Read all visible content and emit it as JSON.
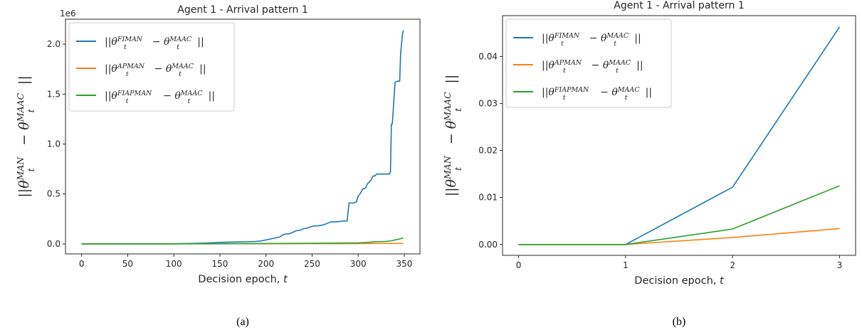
{
  "chart_data": [
    {
      "type": "line",
      "panel": "(a)",
      "title": "Agent 1 - Arrival pattern 1",
      "xlabel": "Decision epoch, t",
      "ylabel": "||θ_t^MAN − θ_t^MAAC||",
      "y_multiplier_label": "1e6",
      "xlim": [
        -17.5,
        367
      ],
      "ylim": [
        -0.1,
        2.25
      ],
      "xticks": [
        0,
        50,
        100,
        150,
        200,
        250,
        300,
        350
      ],
      "yticks": [
        0.0,
        0.5,
        1.0,
        1.5,
        2.0
      ],
      "ytick_labels": [
        "0.0",
        "0.5",
        "1.0",
        "1.5",
        "2.0"
      ],
      "legend_position": "upper-left",
      "series": [
        {
          "name": "||θ_t^FIMAN − θ_t^MAAC||",
          "color": "#1f77b4",
          "x": [
            0,
            100,
            120,
            140,
            150,
            160,
            170,
            180,
            190,
            195,
            200,
            205,
            210,
            215,
            218,
            222,
            225,
            230,
            232,
            238,
            240,
            245,
            248,
            252,
            255,
            262,
            265,
            270,
            275,
            285,
            288,
            290,
            295,
            298,
            300,
            302,
            305,
            308,
            310,
            312,
            314,
            316,
            318,
            320,
            325,
            330,
            334,
            335,
            336,
            337,
            340,
            343,
            344,
            345,
            346,
            348,
            349
          ],
          "y": [
            0.0,
            0.001,
            0.005,
            0.01,
            0.015,
            0.018,
            0.02,
            0.022,
            0.025,
            0.03,
            0.04,
            0.05,
            0.06,
            0.07,
            0.09,
            0.1,
            0.1,
            0.12,
            0.13,
            0.14,
            0.15,
            0.16,
            0.17,
            0.18,
            0.18,
            0.19,
            0.2,
            0.22,
            0.22,
            0.23,
            0.23,
            0.41,
            0.41,
            0.42,
            0.48,
            0.5,
            0.55,
            0.56,
            0.6,
            0.62,
            0.64,
            0.68,
            0.68,
            0.7,
            0.7,
            0.7,
            0.7,
            0.72,
            1.2,
            1.2,
            1.62,
            1.63,
            1.63,
            1.63,
            1.9,
            2.1,
            2.14
          ]
        },
        {
          "name": "||θ_t^APMAN − θ_t^MAAC||",
          "color": "#ff7f0e",
          "x": [
            0,
            100,
            200,
            250,
            300,
            349
          ],
          "y": [
            0.0,
            0.0005,
            0.002,
            0.003,
            0.004,
            0.005
          ]
        },
        {
          "name": "||θ_t^FIAPMAN − θ_t^MAAC||",
          "color": "#2ca02c",
          "x": [
            0,
            100,
            150,
            200,
            250,
            280,
            300,
            310,
            315,
            320,
            330,
            335,
            340,
            343,
            345,
            347,
            349
          ],
          "y": [
            0.0,
            0.0005,
            0.002,
            0.004,
            0.006,
            0.008,
            0.01,
            0.015,
            0.02,
            0.022,
            0.025,
            0.03,
            0.04,
            0.045,
            0.05,
            0.055,
            0.06
          ]
        }
      ]
    },
    {
      "type": "line",
      "panel": "(b)",
      "title": "Agent 1 - Arrival pattern 1",
      "xlabel": "Decision epoch, t",
      "ylabel": "||θ_t^MAN − θ_t^MAAC||",
      "xlim": [
        -0.15,
        3.15
      ],
      "ylim": [
        -0.0023,
        0.0487
      ],
      "xticks": [
        0,
        1,
        2,
        3
      ],
      "yticks": [
        0.0,
        0.01,
        0.02,
        0.03,
        0.04
      ],
      "ytick_labels": [
        "0.00",
        "0.01",
        "0.02",
        "0.03",
        "0.04"
      ],
      "legend_position": "upper-left",
      "series": [
        {
          "name": "||θ_t^FIMAN − θ_t^MAAC||",
          "color": "#1f77b4",
          "x": [
            0,
            1,
            2,
            3
          ],
          "y": [
            0.0,
            0.0,
            0.0122,
            0.0463
          ]
        },
        {
          "name": "||θ_t^APMAN − θ_t^MAAC||",
          "color": "#ff7f0e",
          "x": [
            0,
            1,
            2,
            3
          ],
          "y": [
            0.0,
            0.0,
            0.0015,
            0.0034
          ]
        },
        {
          "name": "||θ_t^FIAPMAN − θ_t^MAAC||",
          "color": "#2ca02c",
          "x": [
            0,
            1,
            2,
            3
          ],
          "y": [
            0.0,
            0.0,
            0.0033,
            0.0125
          ]
        }
      ]
    }
  ],
  "legend_entries": [
    {
      "base": "||θ",
      "sub": "t",
      "sup": "FIMAN",
      "mid": " − θ",
      "sub2": "t",
      "sup2": "MAAC",
      "end": "||"
    },
    {
      "base": "||θ",
      "sub": "t",
      "sup": "APMAN",
      "mid": " − θ",
      "sub2": "t",
      "sup2": "MAAC",
      "end": "||"
    },
    {
      "base": "||θ",
      "sub": "t",
      "sup": "FIAPMAN",
      "mid": " − θ",
      "sub2": "t",
      "sup2": "MAAC",
      "end": "||"
    }
  ],
  "ylabel_parts": {
    "base": "||θ",
    "sub": "t",
    "sup": "MAN",
    "mid": " − θ",
    "sub2": "t",
    "sup2": "MAAC",
    "end": "||"
  },
  "xlabel_parts": {
    "text": "Decision epoch, ",
    "var": "t"
  },
  "captions": [
    "(a)",
    "(b)"
  ]
}
